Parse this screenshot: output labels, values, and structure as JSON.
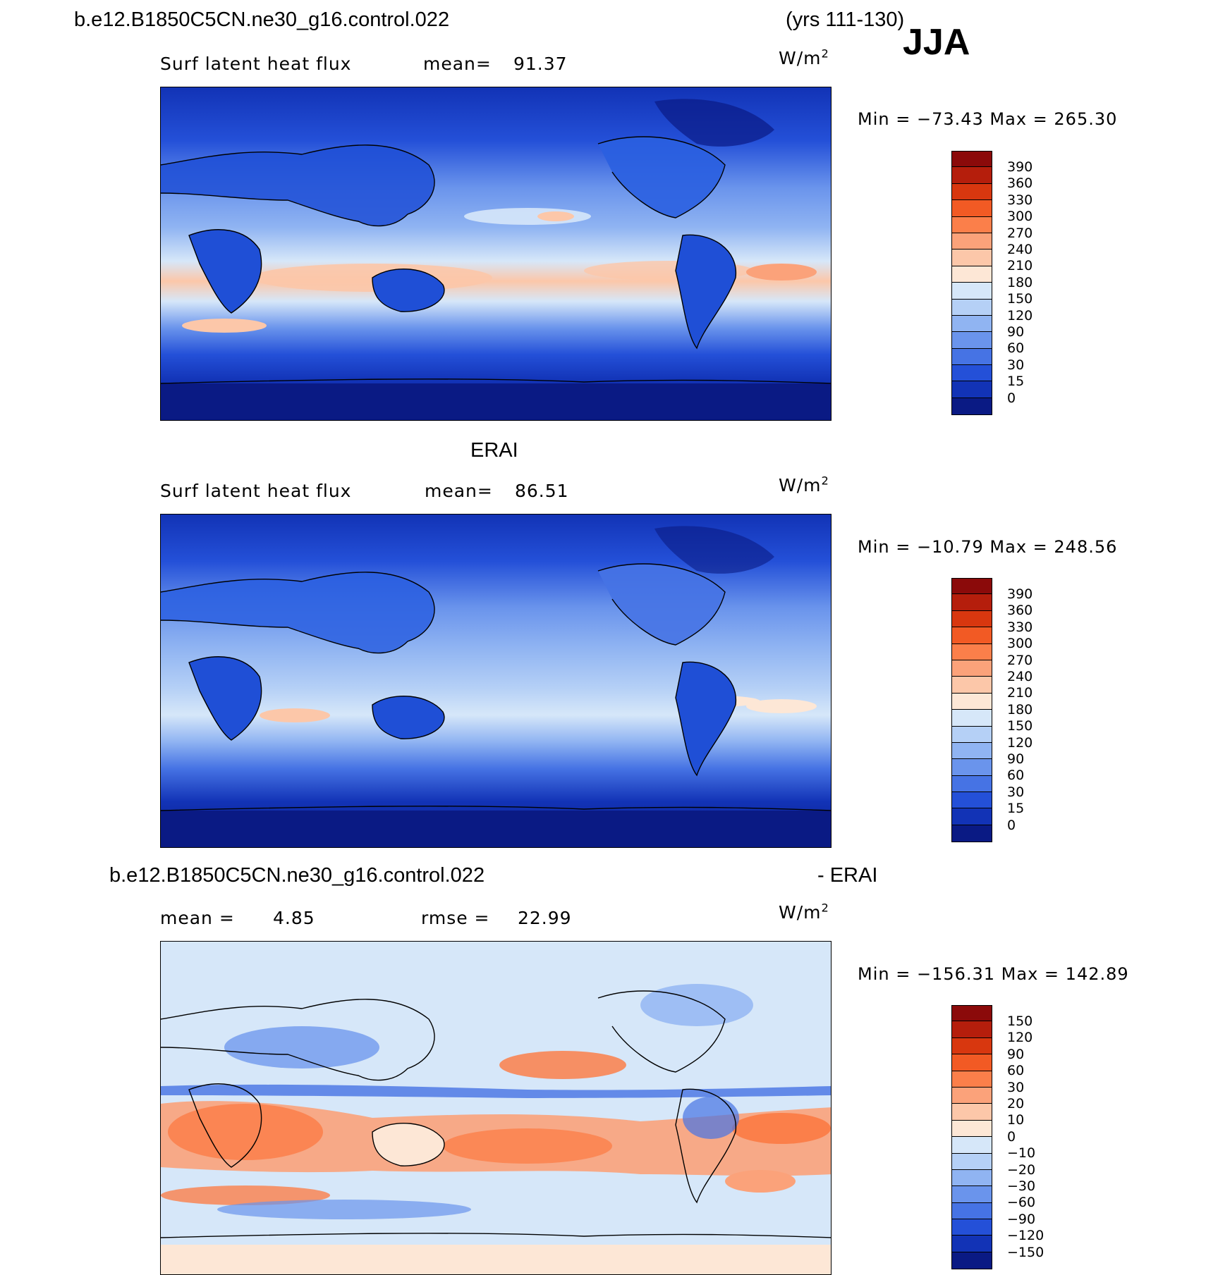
{
  "header": {
    "case_name": "b.e12.B1850C5CN.ne30_g16.control.022",
    "years": "(yrs 111-130)",
    "season": "JJA"
  },
  "panels": [
    {
      "id": "model",
      "field": "Surf latent heat flux",
      "stat1_label": "mean=",
      "stat1_value": "91.37",
      "units": "W/m",
      "units_exp": "2",
      "min_label": "Min = ",
      "min_value": "−73.43",
      "max_label": " Max = ",
      "max_value": "265.30",
      "scale": "absolute"
    },
    {
      "id": "obs",
      "title": "ERAI",
      "field": "Surf latent heat flux",
      "stat1_label": "mean=",
      "stat1_value": "86.51",
      "units": "W/m",
      "units_exp": "2",
      "min_label": "Min = ",
      "min_value": "−10.79",
      "max_label": " Max = ",
      "max_value": "248.56",
      "scale": "absolute"
    },
    {
      "id": "diff",
      "title_left": "b.e12.B1850C5CN.ne30_g16.control.022",
      "title_right": "- ERAI",
      "stat1_label": "mean =",
      "stat1_value": "4.85",
      "stat2_label": "rmse =",
      "stat2_value": "22.99",
      "units": "W/m",
      "units_exp": "2",
      "min_label": "Min = ",
      "min_value": "−156.31",
      "max_label": " Max = ",
      "max_value": "142.89",
      "scale": "difference"
    }
  ],
  "colorbars": {
    "absolute": {
      "labels": [
        "390",
        "360",
        "330",
        "300",
        "270",
        "240",
        "210",
        "180",
        "150",
        "120",
        "90",
        "60",
        "30",
        "15",
        "0"
      ],
      "colors": [
        "#8b0a0a",
        "#b51e0c",
        "#d8370f",
        "#f25a24",
        "#fb7f4a",
        "#fba27a",
        "#fcc7a9",
        "#fde7d6",
        "#d6e7f9",
        "#b5d0f6",
        "#90b4f2",
        "#6a94ec",
        "#4673e4",
        "#2450d8",
        "#1233b6",
        "#0a1a84"
      ]
    },
    "difference": {
      "labels": [
        "150",
        "120",
        "90",
        "60",
        "30",
        "20",
        "10",
        "0",
        "−10",
        "−20",
        "−30",
        "−60",
        "−90",
        "−120",
        "−150"
      ],
      "colors": [
        "#8b0a0a",
        "#b51e0c",
        "#d8370f",
        "#f25a24",
        "#fb7f4a",
        "#fba27a",
        "#fcc7a9",
        "#fde7d6",
        "#d6e7f9",
        "#b5d0f6",
        "#90b4f2",
        "#6a94ec",
        "#4673e4",
        "#2450d8",
        "#1233b6",
        "#0a1a84"
      ]
    }
  },
  "colors": {
    "ocean_mid": "#5b86e8",
    "land_dark": "#1f4fd6",
    "polar": "#0a1a84",
    "warm_band": "#fcc7a9",
    "diff_warm": "#fb7f4a",
    "diff_cool": "#b5d0f6",
    "diff_neutral": "#d6e7f9"
  }
}
